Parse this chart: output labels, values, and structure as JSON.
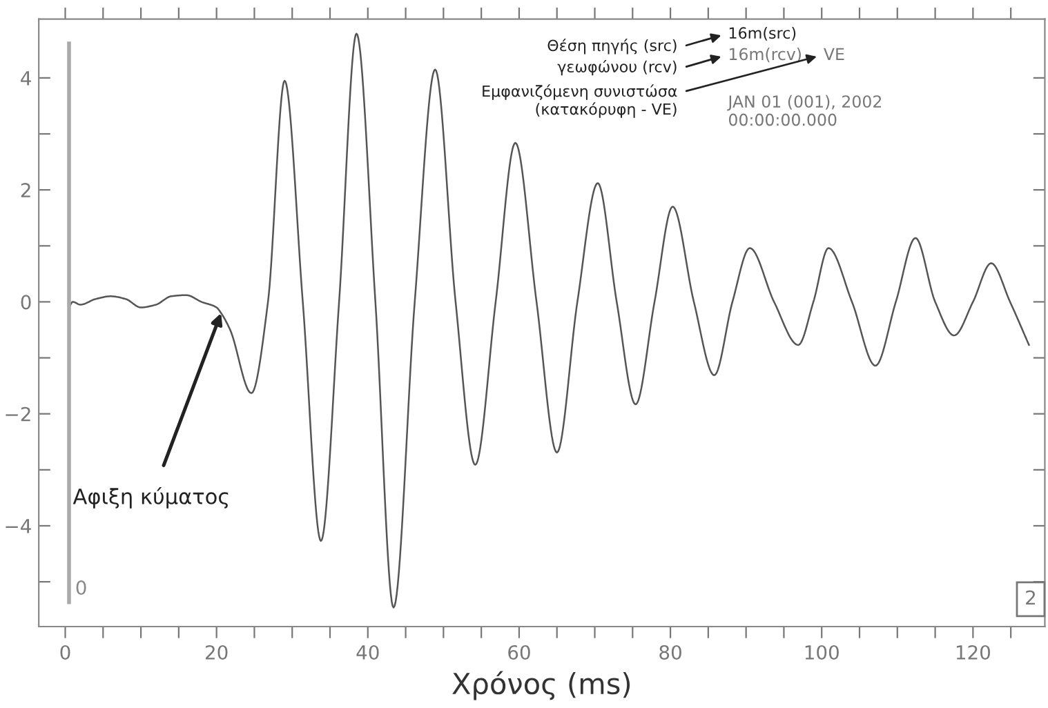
{
  "chart_data": {
    "type": "line",
    "xlabel": "Χρόνος (ms)",
    "xlim": [
      -3.5,
      129.5
    ],
    "ylim": [
      -5.8,
      5.05
    ],
    "xticks": [
      0,
      {
        "value": 5,
        "label": null
      },
      20,
      {
        "value": 10,
        "label": null
      },
      {
        "value": 15,
        "label": null
      },
      {
        "value": 25,
        "label": null
      },
      {
        "value": 30,
        "label": null
      },
      {
        "value": 35,
        "label": null
      },
      40,
      {
        "value": 45,
        "label": null
      },
      {
        "value": 50,
        "label": null
      },
      {
        "value": 55,
        "label": null
      },
      60,
      {
        "value": 65,
        "label": null
      },
      {
        "value": 70,
        "label": null
      },
      {
        "value": 75,
        "label": null
      },
      80,
      {
        "value": 85,
        "label": null
      },
      {
        "value": 90,
        "label": null
      },
      {
        "value": 95,
        "label": null
      },
      100,
      {
        "value": 105,
        "label": null
      },
      {
        "value": 110,
        "label": null
      },
      {
        "value": 115,
        "label": null
      },
      120,
      {
        "value": 125,
        "label": null
      }
    ],
    "yticks": [
      {
        "value": -5,
        "label": null
      },
      -4,
      {
        "value": -3,
        "label": null
      },
      -2,
      {
        "value": -1,
        "label": null
      },
      0,
      {
        "value": 1,
        "label": null
      },
      2,
      {
        "value": 3,
        "label": null
      },
      4
    ],
    "grid": false,
    "legend": false,
    "marker": "none",
    "line_style": "solid",
    "series": [
      {
        "color": "#555555",
        "x": [
          0.5,
          1,
          2,
          4,
          6,
          8,
          10,
          12,
          14,
          16,
          18,
          20,
          20.6,
          21.8,
          24.6,
          26.8,
          29,
          31.4,
          33.8,
          36.2,
          38.5,
          41,
          43.4,
          46.2,
          48.9,
          51.6,
          54.2,
          56.9,
          59.5,
          62.3,
          65,
          67.7,
          70.4,
          72.9,
          75.4,
          77.9,
          80.3,
          83.1,
          85.8,
          88.2,
          90.5,
          93.7,
          96.9,
          98.9,
          100.9,
          104,
          107.1,
          109.8,
          112.4,
          115,
          117.5,
          120,
          122.4,
          124.9,
          127.4
        ],
        "values": [
          -0.1,
          0,
          -0.05,
          0.05,
          0.1,
          0.05,
          -0.1,
          -0.05,
          0.1,
          0.12,
          0,
          -0.1,
          -0.2,
          -0.5,
          -1.63,
          0,
          3.95,
          0,
          -4.27,
          0,
          4.79,
          0,
          -5.46,
          0,
          4.15,
          0,
          -2.91,
          0,
          2.84,
          0,
          -2.69,
          0,
          2.12,
          0,
          -1.83,
          0,
          1.7,
          0,
          -1.31,
          0,
          0.96,
          0,
          -0.77,
          0,
          0.96,
          0,
          -1.14,
          0,
          1.14,
          0,
          -0.6,
          0,
          0.69,
          0,
          -0.77
        ]
      }
    ],
    "ref_lines": [
      {
        "axis": "x",
        "value": 0.5,
        "label": "0",
        "color": "#aaaaaa"
      }
    ],
    "annotations": [
      {
        "text": "Αφιξη κύματος",
        "x": 20.6,
        "y": -0.2
      },
      "Θέση πηγής (src)",
      "γεωφώνου (rcv)",
      "Εμφανιζόμενη συνιστώσα\n(κατακόρυφη - VE)",
      "16m(src)",
      "16m(rcv)",
      "VE",
      "JAN 01 (001), 2002\n00:00:00.000",
      "2"
    ]
  }
}
